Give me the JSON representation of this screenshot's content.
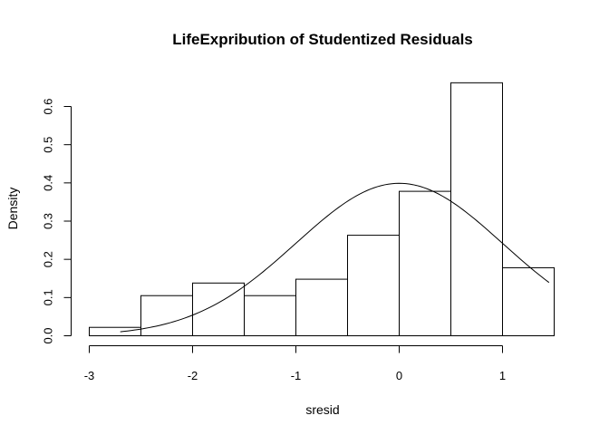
{
  "chart_data": {
    "type": "bar",
    "title": "LifeExpribution of Studentized Residuals",
    "xlabel": "sresid",
    "ylabel": "Density",
    "xlim": [
      -3,
      1.5
    ],
    "ylim": [
      0,
      0.66
    ],
    "x_ticks": [
      -3,
      -2,
      -1,
      0,
      1
    ],
    "y_ticks": [
      0.0,
      0.1,
      0.2,
      0.3,
      0.4,
      0.5,
      0.6
    ],
    "x_tick_labels": [
      "-3",
      "-2",
      "-1",
      "0",
      "1"
    ],
    "y_tick_labels": [
      "0.0",
      "0.1",
      "0.2",
      "0.3",
      "0.4",
      "0.5",
      "0.6"
    ],
    "bins": [
      {
        "start": -3.0,
        "end": -2.5,
        "density": 0.022
      },
      {
        "start": -2.5,
        "end": -2.0,
        "density": 0.105
      },
      {
        "start": -2.0,
        "end": -1.5,
        "density": 0.138
      },
      {
        "start": -1.5,
        "end": -1.0,
        "density": 0.105
      },
      {
        "start": -1.0,
        "end": -0.5,
        "density": 0.148
      },
      {
        "start": -0.5,
        "end": 0.0,
        "density": 0.263
      },
      {
        "start": 0.0,
        "end": 0.5,
        "density": 0.378
      },
      {
        "start": 0.5,
        "end": 1.0,
        "density": 0.662
      },
      {
        "start": 1.0,
        "end": 1.5,
        "density": 0.178
      }
    ],
    "curve": {
      "type": "normal-density",
      "mean": 0,
      "sd": 1,
      "x_range": [
        -2.7,
        1.45
      ]
    },
    "grid": false,
    "legend": "none"
  }
}
